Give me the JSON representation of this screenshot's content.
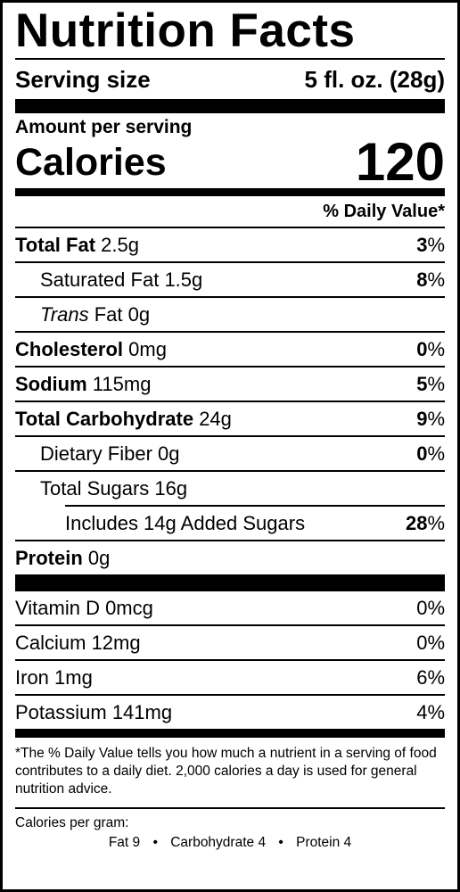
{
  "title": "Nutrition Facts",
  "serving": {
    "label": "Serving size",
    "value": "5 fl. oz. (28g)"
  },
  "amount_per_serving": "Amount per serving",
  "calories": {
    "label": "Calories",
    "value": "120"
  },
  "daily_value_header": "% Daily Value*",
  "nutrients": [
    {
      "name": "Total Fat",
      "amount": "2.5g",
      "dv": "3",
      "pct": "%"
    },
    {
      "name": "Saturated Fat",
      "amount": "1.5g",
      "dv": "8",
      "pct": "%"
    },
    {
      "name_italic": "Trans",
      "name": "Fat",
      "amount": "0g"
    },
    {
      "name": "Cholesterol",
      "amount": "0mg",
      "dv": "0",
      "pct": "%"
    },
    {
      "name": "Sodium",
      "amount": "115mg",
      "dv": "5",
      "pct": "%"
    },
    {
      "name": "Total Carbohydrate",
      "amount": "24g",
      "dv": "9",
      "pct": "%"
    },
    {
      "name": "Dietary Fiber",
      "amount": "0g",
      "dv": "0",
      "pct": "%"
    },
    {
      "name": "Total Sugars",
      "amount": "16g"
    },
    {
      "name": "Includes 14g Added Sugars",
      "dv": "28",
      "pct": "%"
    },
    {
      "name": "Protein",
      "amount": "0g"
    }
  ],
  "vitamins": [
    {
      "name": "Vitamin D 0mcg",
      "dv": "0%"
    },
    {
      "name": "Calcium 12mg",
      "dv": "0%"
    },
    {
      "name": "Iron 1mg",
      "dv": "6%"
    },
    {
      "name": "Potassium 141mg",
      "dv": "4%"
    }
  ],
  "footnote": "*The % Daily Value tells you how much a nutrient in a serving of food contributes to a daily diet. 2,000 calories a day is used for general nutrition advice.",
  "calories_per_gram": {
    "label": "Calories per gram:",
    "fat": "Fat 9",
    "carbohydrate": "Carbohydrate 4",
    "protein": "Protein 4",
    "separator": "•"
  }
}
